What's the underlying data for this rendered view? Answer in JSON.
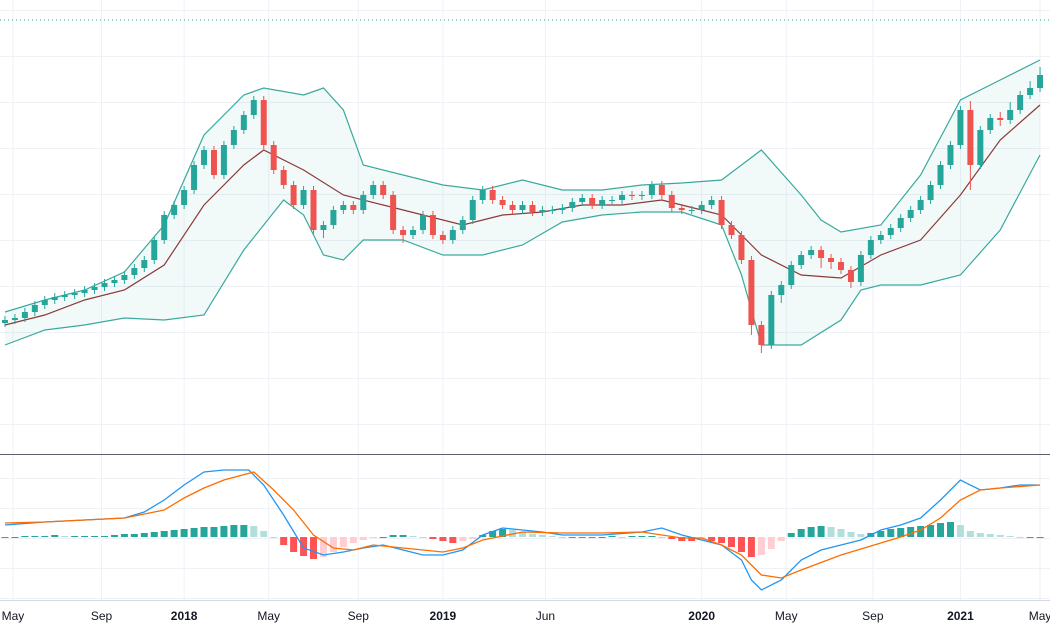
{
  "chart_data": {
    "type": "candlestick",
    "xlim": [
      -1,
      210
    ],
    "xticks": [
      {
        "value": 1.6,
        "label": "May"
      },
      {
        "value": 19.4,
        "label": "Sep"
      },
      {
        "value": 36,
        "label": "2018",
        "bold": true
      },
      {
        "value": 53,
        "label": "May"
      },
      {
        "value": 71,
        "label": "Sep"
      },
      {
        "value": 88,
        "label": "2019",
        "bold": true
      },
      {
        "value": 108.6,
        "label": "Jun"
      },
      {
        "value": 140,
        "label": "2020",
        "bold": true
      },
      {
        "value": 157,
        "label": "May"
      },
      {
        "value": 174.4,
        "label": "Sep"
      },
      {
        "value": 192,
        "label": "2021",
        "bold": true
      },
      {
        "value": 208,
        "label": "May"
      }
    ],
    "ylim": [
      0,
      453
    ],
    "up_color": "#26a69a",
    "down_color": "#ef5350",
    "x": [
      0,
      2,
      4,
      6,
      8,
      10,
      12,
      14,
      16,
      18,
      20,
      22,
      24,
      26,
      28,
      30,
      32,
      34,
      36,
      38,
      40,
      42,
      44,
      46,
      48,
      50,
      52,
      54,
      56,
      58,
      60,
      62,
      64,
      66,
      68,
      70,
      72,
      74,
      76,
      78,
      80,
      82,
      84,
      86,
      88,
      90,
      92,
      94,
      96,
      98,
      100,
      102,
      104,
      106,
      108,
      110,
      112,
      114,
      116,
      118,
      120,
      122,
      124,
      126,
      128,
      130,
      132,
      134,
      136,
      138,
      140,
      142,
      144,
      146,
      148,
      150,
      152,
      154,
      156,
      158,
      160,
      162,
      164,
      166,
      168,
      170,
      172,
      174,
      176,
      178,
      180,
      182,
      184,
      186,
      188,
      190,
      192,
      194,
      196,
      198,
      200,
      202,
      204,
      206,
      208
    ],
    "open": [
      130,
      133,
      135,
      141,
      148,
      153,
      156,
      158,
      160,
      163,
      166,
      170,
      173,
      178,
      185,
      193,
      213,
      238,
      248,
      263,
      288,
      303,
      278,
      308,
      323,
      338,
      353,
      308,
      283,
      268,
      248,
      263,
      223,
      228,
      243,
      248,
      243,
      258,
      268,
      258,
      223,
      218,
      223,
      238,
      218,
      213,
      223,
      233,
      253,
      263,
      253,
      248,
      243,
      248,
      241,
      243,
      243,
      245,
      251,
      255,
      248,
      253,
      253,
      258,
      257,
      258,
      268,
      258,
      245,
      243,
      243,
      248,
      253,
      228,
      218,
      193,
      128,
      108,
      158,
      168,
      188,
      198,
      203,
      195,
      191,
      183,
      171,
      198,
      213,
      218,
      225,
      235,
      243,
      253,
      268,
      288,
      308,
      343,
      288,
      323,
      335,
      333,
      343,
      358,
      365
    ],
    "high": [
      137,
      139,
      145,
      152,
      157,
      160,
      162,
      164,
      167,
      170,
      174,
      177,
      182,
      189,
      197,
      217,
      242,
      252,
      267,
      292,
      307,
      307,
      312,
      327,
      342,
      357,
      357,
      312,
      287,
      272,
      267,
      267,
      232,
      247,
      252,
      252,
      262,
      272,
      272,
      262,
      227,
      227,
      242,
      242,
      222,
      227,
      237,
      257,
      267,
      267,
      257,
      252,
      252,
      252,
      247,
      247,
      249,
      255,
      259,
      259,
      257,
      257,
      262,
      262,
      262,
      272,
      272,
      262,
      249,
      247,
      252,
      257,
      257,
      232,
      222,
      197,
      132,
      162,
      172,
      192,
      202,
      207,
      207,
      199,
      195,
      187,
      202,
      217,
      222,
      229,
      239,
      247,
      257,
      272,
      292,
      312,
      347,
      352,
      327,
      339,
      341,
      351,
      362,
      372,
      386
    ],
    "low": [
      126,
      129,
      131,
      137,
      144,
      149,
      152,
      154,
      156,
      159,
      162,
      166,
      169,
      174,
      181,
      189,
      209,
      234,
      244,
      259,
      284,
      274,
      274,
      304,
      319,
      334,
      304,
      279,
      264,
      244,
      244,
      219,
      215,
      224,
      239,
      239,
      239,
      254,
      254,
      219,
      210,
      214,
      219,
      214,
      209,
      209,
      219,
      229,
      249,
      249,
      244,
      239,
      239,
      237,
      237,
      239,
      239,
      241,
      247,
      244,
      244,
      249,
      249,
      253,
      253,
      254,
      254,
      241,
      239,
      239,
      239,
      244,
      224,
      214,
      189,
      118,
      100,
      104,
      150,
      164,
      184,
      194,
      185,
      184,
      179,
      165,
      167,
      194,
      209,
      214,
      221,
      231,
      239,
      249,
      264,
      284,
      304,
      263,
      284,
      319,
      327,
      329,
      339,
      354,
      361
    ],
    "close": [
      133,
      135,
      141,
      148,
      153,
      156,
      158,
      160,
      163,
      166,
      170,
      173,
      178,
      185,
      193,
      213,
      238,
      248,
      263,
      288,
      303,
      278,
      308,
      323,
      338,
      353,
      308,
      283,
      268,
      248,
      263,
      223,
      228,
      243,
      248,
      243,
      258,
      268,
      258,
      223,
      218,
      223,
      238,
      218,
      213,
      223,
      233,
      253,
      263,
      253,
      248,
      243,
      248,
      241,
      243,
      243,
      245,
      251,
      255,
      248,
      253,
      253,
      258,
      257,
      258,
      268,
      258,
      245,
      243,
      243,
      248,
      253,
      228,
      218,
      193,
      128,
      108,
      158,
      168,
      188,
      198,
      203,
      195,
      191,
      183,
      171,
      198,
      213,
      218,
      225,
      235,
      243,
      253,
      268,
      288,
      308,
      343,
      288,
      323,
      335,
      333,
      343,
      358,
      365,
      378
    ],
    "band_fill": "rgba(38,166,154,0.06)",
    "bands": [
      {
        "color": "#3aa99d",
        "x": [
          0,
          8,
          16,
          24,
          32,
          40,
          48,
          52,
          60,
          64,
          68,
          72,
          80,
          88,
          96,
          104,
          112,
          120,
          128,
          136,
          144,
          148,
          152,
          160,
          164,
          168,
          176,
          184,
          192,
          200,
          208
        ],
        "values": [
          141,
          153,
          163,
          181,
          228,
          318,
          358,
          365,
          358,
          365,
          343,
          288,
          278,
          268,
          263,
          273,
          263,
          263,
          268,
          270,
          273,
          288,
          303,
          258,
          233,
          221,
          228,
          278,
          353,
          373,
          393
        ]
      },
      {
        "color": "#8b3a3a",
        "x": [
          0,
          8,
          16,
          24,
          32,
          40,
          48,
          52,
          60,
          68,
          76,
          84,
          92,
          100,
          108,
          116,
          124,
          132,
          140,
          144,
          148,
          152,
          160,
          168,
          176,
          184,
          192,
          200,
          208
        ],
        "values": [
          128,
          138,
          153,
          163,
          188,
          248,
          288,
          303,
          283,
          258,
          248,
          238,
          228,
          238,
          241,
          248,
          248,
          253,
          243,
          238,
          218,
          198,
          178,
          175,
          198,
          213,
          258,
          313,
          348
        ]
      },
      {
        "color": "#3aa99d",
        "x": [
          0,
          8,
          16,
          24,
          32,
          40,
          48,
          56,
          60,
          64,
          68,
          72,
          80,
          88,
          96,
          104,
          112,
          120,
          128,
          136,
          144,
          148,
          152,
          160,
          168,
          172,
          176,
          184,
          192,
          200,
          208
        ],
        "values": [
          108,
          123,
          128,
          135,
          133,
          138,
          203,
          253,
          238,
          198,
          193,
          213,
          213,
          198,
          198,
          208,
          231,
          238,
          241,
          241,
          228,
          178,
          108,
          108,
          133,
          163,
          168,
          168,
          178,
          223,
          298
        ]
      }
    ],
    "macd": {
      "ylim": [
        -63,
        82
      ],
      "lines": [
        {
          "color": "#2196f3",
          "x": [
            0,
            8,
            16,
            24,
            28,
            32,
            36,
            40,
            44,
            49,
            52,
            56,
            60,
            64,
            68,
            72,
            76,
            80,
            84,
            88,
            92,
            96,
            100,
            104,
            108,
            112,
            120,
            128,
            132,
            136,
            140,
            144,
            148,
            150,
            152,
            156,
            160,
            164,
            168,
            172,
            176,
            180,
            184,
            188,
            192,
            196,
            200,
            204,
            208
          ],
          "values": [
            12,
            15,
            17,
            19,
            25,
            37,
            52,
            65,
            67,
            67,
            52,
            22,
            -11,
            -18,
            -15,
            -11,
            -8,
            -13,
            -18,
            -18,
            -13,
            2,
            9,
            7,
            5,
            2,
            2,
            5,
            9,
            2,
            -3,
            -8,
            -23,
            -43,
            -53,
            -43,
            -23,
            -13,
            -8,
            -3,
            7,
            12,
            19,
            37,
            57,
            47,
            49,
            52,
            52
          ]
        },
        {
          "color": "#ff6d00",
          "x": [
            0,
            8,
            16,
            24,
            32,
            36,
            40,
            44,
            50,
            54,
            58,
            62,
            66,
            70,
            74,
            80,
            88,
            92,
            96,
            104,
            112,
            120,
            128,
            136,
            140,
            144,
            148,
            152,
            156,
            160,
            168,
            176,
            180,
            184,
            188,
            192,
            196,
            200,
            208
          ],
          "values": [
            14,
            15,
            17,
            19,
            27,
            39,
            49,
            57,
            65,
            47,
            27,
            2,
            -11,
            -13,
            -8,
            -11,
            -15,
            -11,
            -3,
            5,
            4,
            4,
            5,
            -1,
            -1,
            -8,
            -18,
            -38,
            -41,
            -33,
            -18,
            -6,
            0,
            7,
            19,
            37,
            47,
            49,
            52
          ]
        }
      ],
      "histogram": {
        "colors": [
          "#26a69a",
          "#b2dfdb",
          "#ff5252",
          "#ffcdd2"
        ],
        "values": [
          -1,
          0,
          1,
          1,
          1,
          2,
          1,
          1,
          1,
          1,
          1,
          2,
          3,
          3,
          4,
          5,
          6,
          7,
          8,
          9,
          10,
          10,
          11,
          12,
          12,
          11,
          6,
          0,
          -8,
          -15,
          -19,
          -22,
          -20,
          -15,
          -10,
          -6,
          -3,
          -1,
          0,
          2,
          2,
          1,
          0,
          -2,
          -4,
          -6,
          -4,
          -2,
          2,
          6,
          8,
          7,
          5,
          3,
          2,
          1,
          0,
          -1,
          -1,
          -1,
          0,
          1,
          0,
          1,
          1,
          1,
          0,
          -2,
          -4,
          -4,
          -3,
          -4,
          -6,
          -10,
          -15,
          -20,
          -18,
          -12,
          -4,
          4,
          8,
          10,
          11,
          10,
          8,
          5,
          3,
          4,
          6,
          8,
          9,
          10,
          11,
          12,
          14,
          15,
          12,
          6,
          4,
          3,
          2,
          1,
          0,
          -1,
          0
        ]
      }
    }
  }
}
